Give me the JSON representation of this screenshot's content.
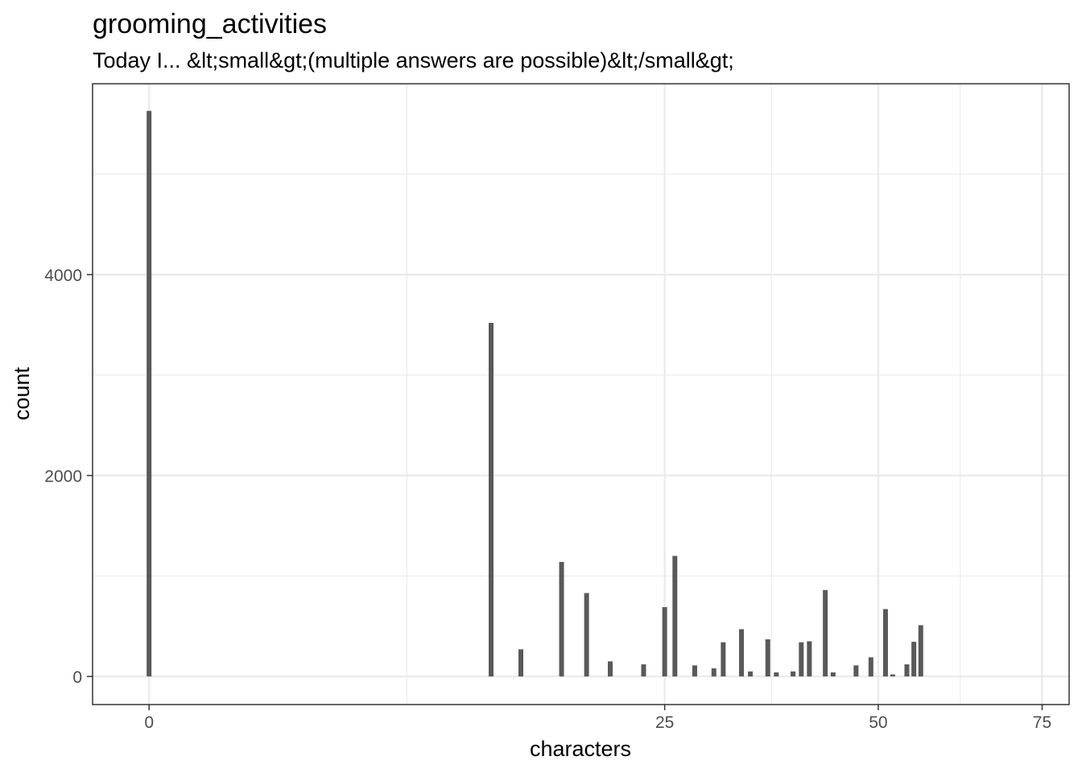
{
  "chart_data": {
    "type": "bar",
    "title": "grooming_activities",
    "subtitle": "Today I... &lt;small&gt;(multiple answers are possible)&lt;/small&gt;",
    "xlabel": "characters",
    "ylabel": "count",
    "x_scale": "sqrt",
    "x_ticks": [
      0,
      25,
      50,
      75
    ],
    "y_ticks": [
      0,
      2000,
      4000
    ],
    "xlim": [
      -0.3,
      79.6
    ],
    "ylim": [
      -280,
      5900
    ],
    "grid": true,
    "bar_color": "#595959",
    "x": [
      0,
      11,
      13,
      16,
      18,
      20,
      23,
      25,
      26,
      28,
      30,
      31,
      33,
      34,
      36,
      37,
      39,
      40,
      41,
      43,
      44,
      47,
      49,
      51,
      52,
      54,
      55,
      56
    ],
    "values": [
      5630,
      3520,
      270,
      1140,
      830,
      150,
      120,
      690,
      1200,
      110,
      80,
      340,
      470,
      50,
      370,
      40,
      50,
      340,
      350,
      860,
      40,
      110,
      190,
      670,
      20,
      120,
      345,
      510
    ]
  }
}
